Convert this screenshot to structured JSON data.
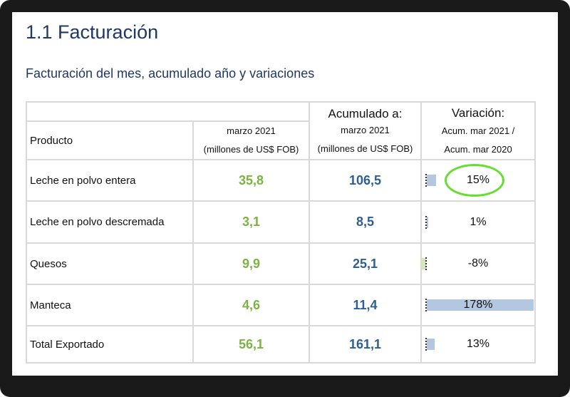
{
  "title": "1.1 Facturación",
  "subtitle": "Facturación del mes, acumulado año y variaciones",
  "table": {
    "headers": {
      "product": "Producto",
      "month": "marzo 2021",
      "month_unit": "(millones de US$ FOB)",
      "acum_title": "Acumulado a:",
      "acum": "marzo 2021",
      "acum_unit": "(millones de US$ FOB)",
      "var_title": "Variación:",
      "var_line1": "Acum. mar 2021 /",
      "var_line2": "Acum. mar 2020"
    },
    "rows": [
      {
        "product": "Leche en polvo entera",
        "month": "35,8",
        "acum": "106,5",
        "variation": "15%",
        "var_value": 15,
        "highlighted": true
      },
      {
        "product": "Leche en polvo descremada",
        "month": "3,1",
        "acum": "8,5",
        "variation": "1%",
        "var_value": 1
      },
      {
        "product": "Quesos",
        "month": "9,9",
        "acum": "25,1",
        "variation": "-8%",
        "var_value": -8
      },
      {
        "product": "Manteca",
        "month": "4,6",
        "acum": "11,4",
        "variation": "178%",
        "var_value": 178
      },
      {
        "product": "Total Exportado",
        "month": "56,1",
        "acum": "161,1",
        "variation": "13%",
        "var_value": 13
      }
    ]
  },
  "colors": {
    "month": "#7cb342",
    "acum": "#2f5f8f",
    "bar": "#b4c7e0",
    "highlight": "#66dd33"
  }
}
